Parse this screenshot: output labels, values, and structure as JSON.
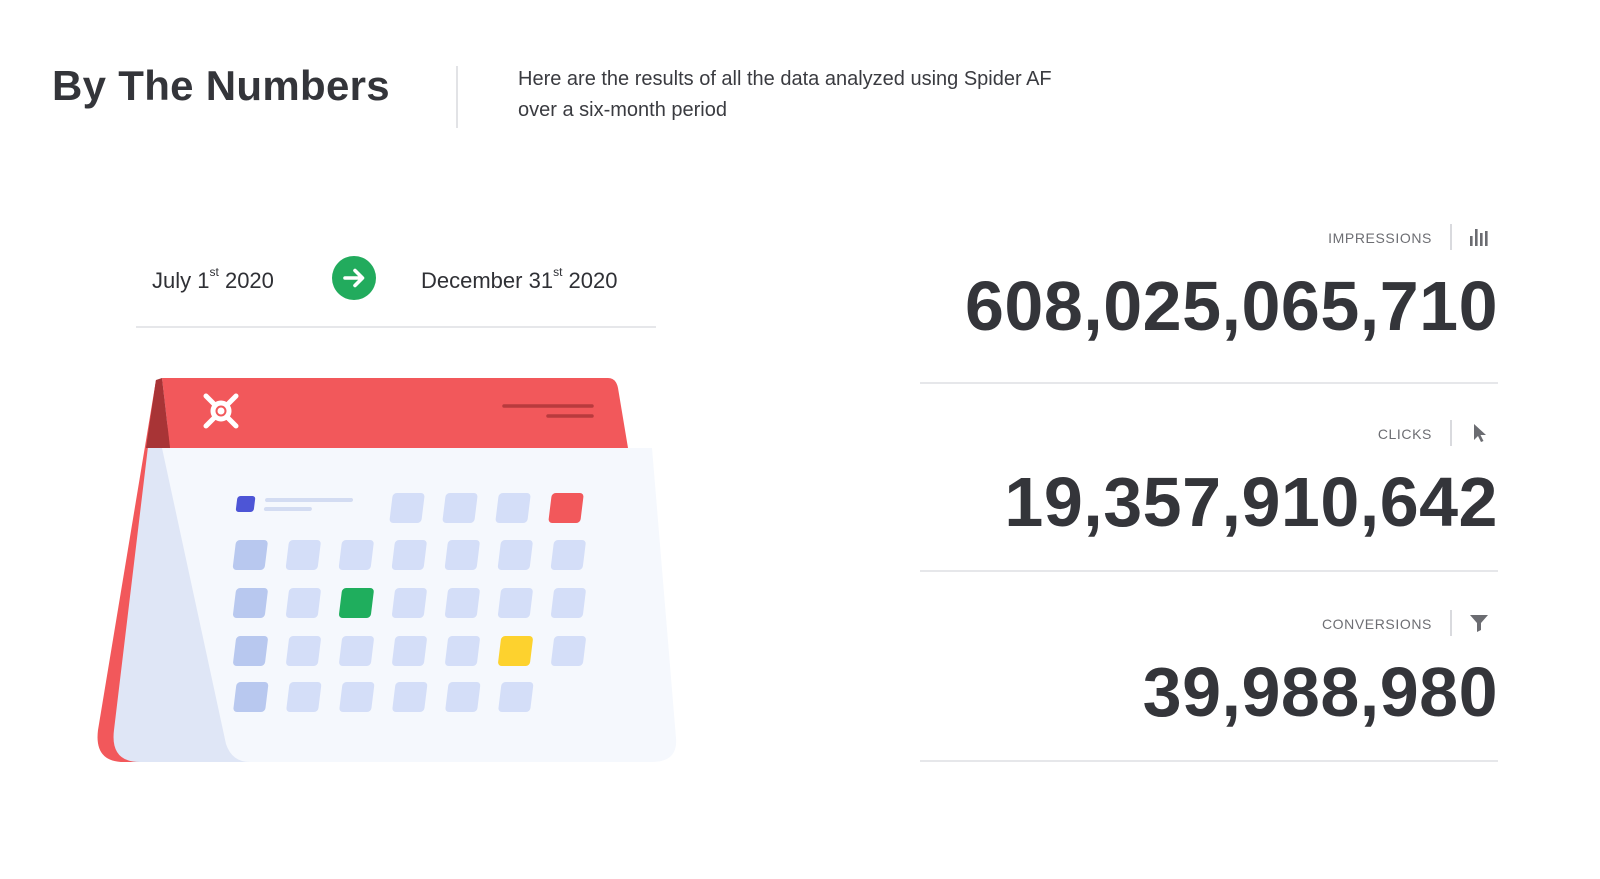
{
  "header": {
    "title": "By The Numbers",
    "subtitle_line1": "Here are the results of all the data analyzed using Spider AF",
    "subtitle_line2": "over a six-month period"
  },
  "date_range": {
    "start_prefix": "July 1",
    "start_suffix": "st",
    "start_year": "2020",
    "end_prefix": "December 31",
    "end_suffix": "st",
    "end_year": "2020",
    "arrow_icon": "arrow-right-icon",
    "arrow_color": "#22ab5d"
  },
  "calendar": {
    "icon": "calendar-illustration",
    "logo": "spider-af-logo",
    "primary_color": "#f2585b",
    "highlights": {
      "blue": "#4d55d6",
      "red": "#f2585b",
      "green": "#1fae5d",
      "yellow": "#fdd22e"
    }
  },
  "stats": [
    {
      "label": "IMPRESSIONS",
      "icon": "bar-chart-icon",
      "value": "608,025,065,710"
    },
    {
      "label": "CLICKS",
      "icon": "cursor-pointer-icon",
      "value": "19,357,910,642"
    },
    {
      "label": "CONVERSIONS",
      "icon": "filter-funnel-icon",
      "value": "39,988,980"
    }
  ]
}
